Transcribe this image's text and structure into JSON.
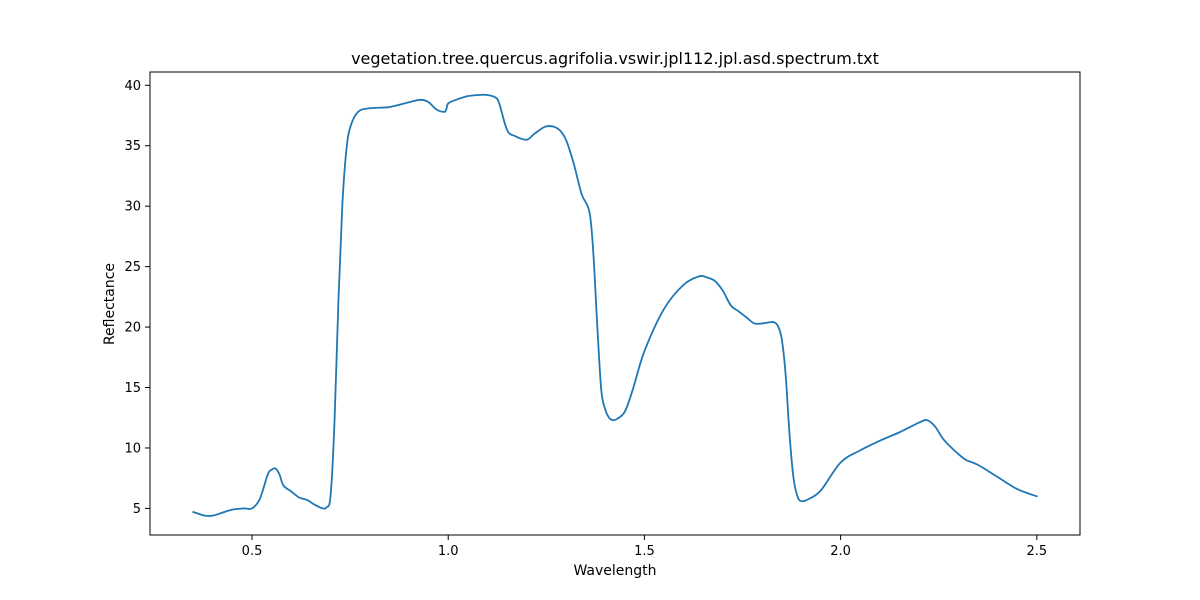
{
  "chart_data": {
    "type": "line",
    "title": "vegetation.tree.quercus.agrifolia.vswir.jpl112.jpl.asd.spectrum.txt",
    "xlabel": "Wavelength",
    "ylabel": "Reflectance",
    "xlim": [
      0.24,
      2.61
    ],
    "ylim": [
      2.8,
      41.1
    ],
    "xticks": [
      0.5,
      1.0,
      1.5,
      2.0,
      2.5
    ],
    "xtick_labels": [
      "0.5",
      "1.0",
      "1.5",
      "2.0",
      "2.5"
    ],
    "yticks": [
      5,
      10,
      15,
      20,
      25,
      30,
      35,
      40
    ],
    "ytick_labels": [
      "5",
      "10",
      "15",
      "20",
      "25",
      "30",
      "35",
      "40"
    ],
    "grid": false,
    "line_color": "#1f77b4",
    "series": [
      {
        "x": [
          0.35,
          0.36,
          0.38,
          0.4,
          0.42,
          0.45,
          0.48,
          0.5,
          0.52,
          0.54,
          0.55,
          0.56,
          0.57,
          0.58,
          0.6,
          0.62,
          0.64,
          0.66,
          0.68,
          0.69,
          0.7,
          0.71,
          0.72,
          0.73,
          0.74,
          0.75,
          0.77,
          0.8,
          0.85,
          0.9,
          0.93,
          0.95,
          0.97,
          0.99,
          0.995,
          1.0,
          1.02,
          1.05,
          1.08,
          1.1,
          1.12,
          1.13,
          1.15,
          1.17,
          1.2,
          1.22,
          1.25,
          1.28,
          1.3,
          1.32,
          1.34,
          1.36,
          1.37,
          1.38,
          1.39,
          1.4,
          1.41,
          1.42,
          1.43,
          1.45,
          1.47,
          1.5,
          1.55,
          1.6,
          1.64,
          1.66,
          1.68,
          1.7,
          1.72,
          1.74,
          1.76,
          1.78,
          1.8,
          1.82,
          1.83,
          1.84,
          1.85,
          1.86,
          1.87,
          1.88,
          1.89,
          1.9,
          1.92,
          1.95,
          2.0,
          2.05,
          2.1,
          2.15,
          2.2,
          2.22,
          2.24,
          2.26,
          2.28,
          2.3,
          2.32,
          2.35,
          2.4,
          2.45,
          2.5
        ],
        "y": [
          4.7,
          4.6,
          4.4,
          4.4,
          4.6,
          4.9,
          5.0,
          5.0,
          5.8,
          7.8,
          8.2,
          8.3,
          7.8,
          6.9,
          6.4,
          5.9,
          5.7,
          5.3,
          5.0,
          5.1,
          6.0,
          12.0,
          22.0,
          30.0,
          34.5,
          36.5,
          37.8,
          38.1,
          38.2,
          38.6,
          38.8,
          38.6,
          38.0,
          37.8,
          38.0,
          38.5,
          38.8,
          39.1,
          39.2,
          39.2,
          39.0,
          38.5,
          36.3,
          35.8,
          35.5,
          36.0,
          36.6,
          36.4,
          35.5,
          33.5,
          31.0,
          29.5,
          26.0,
          20.0,
          14.8,
          13.2,
          12.5,
          12.3,
          12.4,
          13.0,
          14.8,
          18.0,
          21.5,
          23.5,
          24.2,
          24.1,
          23.8,
          23.0,
          21.8,
          21.3,
          20.8,
          20.3,
          20.3,
          20.4,
          20.4,
          20.1,
          19.0,
          16.0,
          11.0,
          7.5,
          6.0,
          5.6,
          5.8,
          6.5,
          8.8,
          9.8,
          10.6,
          11.3,
          12.1,
          12.3,
          11.8,
          10.8,
          10.1,
          9.5,
          9.0,
          8.6,
          7.6,
          6.6,
          6.0
        ]
      }
    ]
  }
}
